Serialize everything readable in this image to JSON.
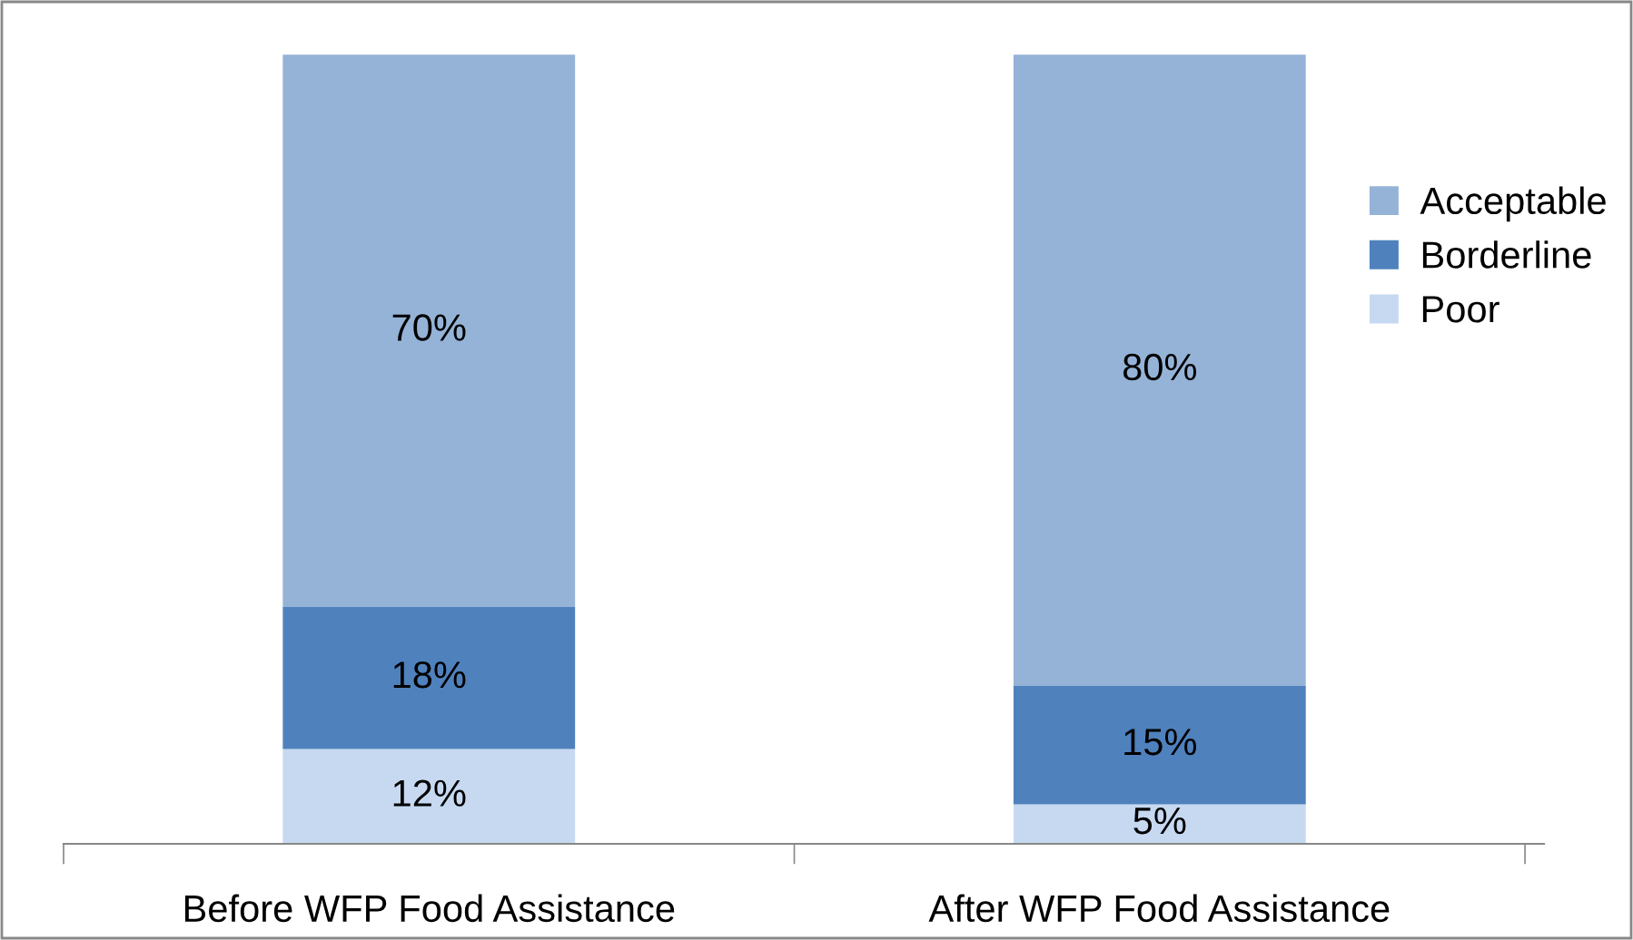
{
  "chart_data": {
    "type": "bar",
    "stacked": true,
    "categories": [
      "Before WFP Food Assistance",
      "After WFP Food Assistance"
    ],
    "series": [
      {
        "name": "Poor",
        "color": "#c6d9f1",
        "values": [
          12,
          5
        ],
        "value_labels": [
          "12%",
          "5%"
        ]
      },
      {
        "name": "Borderline",
        "color": "#4f81bd",
        "values": [
          18,
          15
        ],
        "value_labels": [
          "18%",
          "15%"
        ]
      },
      {
        "name": "Acceptable",
        "color": "#95b3d7",
        "values": [
          70,
          80
        ],
        "value_labels": [
          "70%",
          "80%"
        ]
      }
    ],
    "tick_labels": "x",
    "legend": "right",
    "grid": false
  }
}
